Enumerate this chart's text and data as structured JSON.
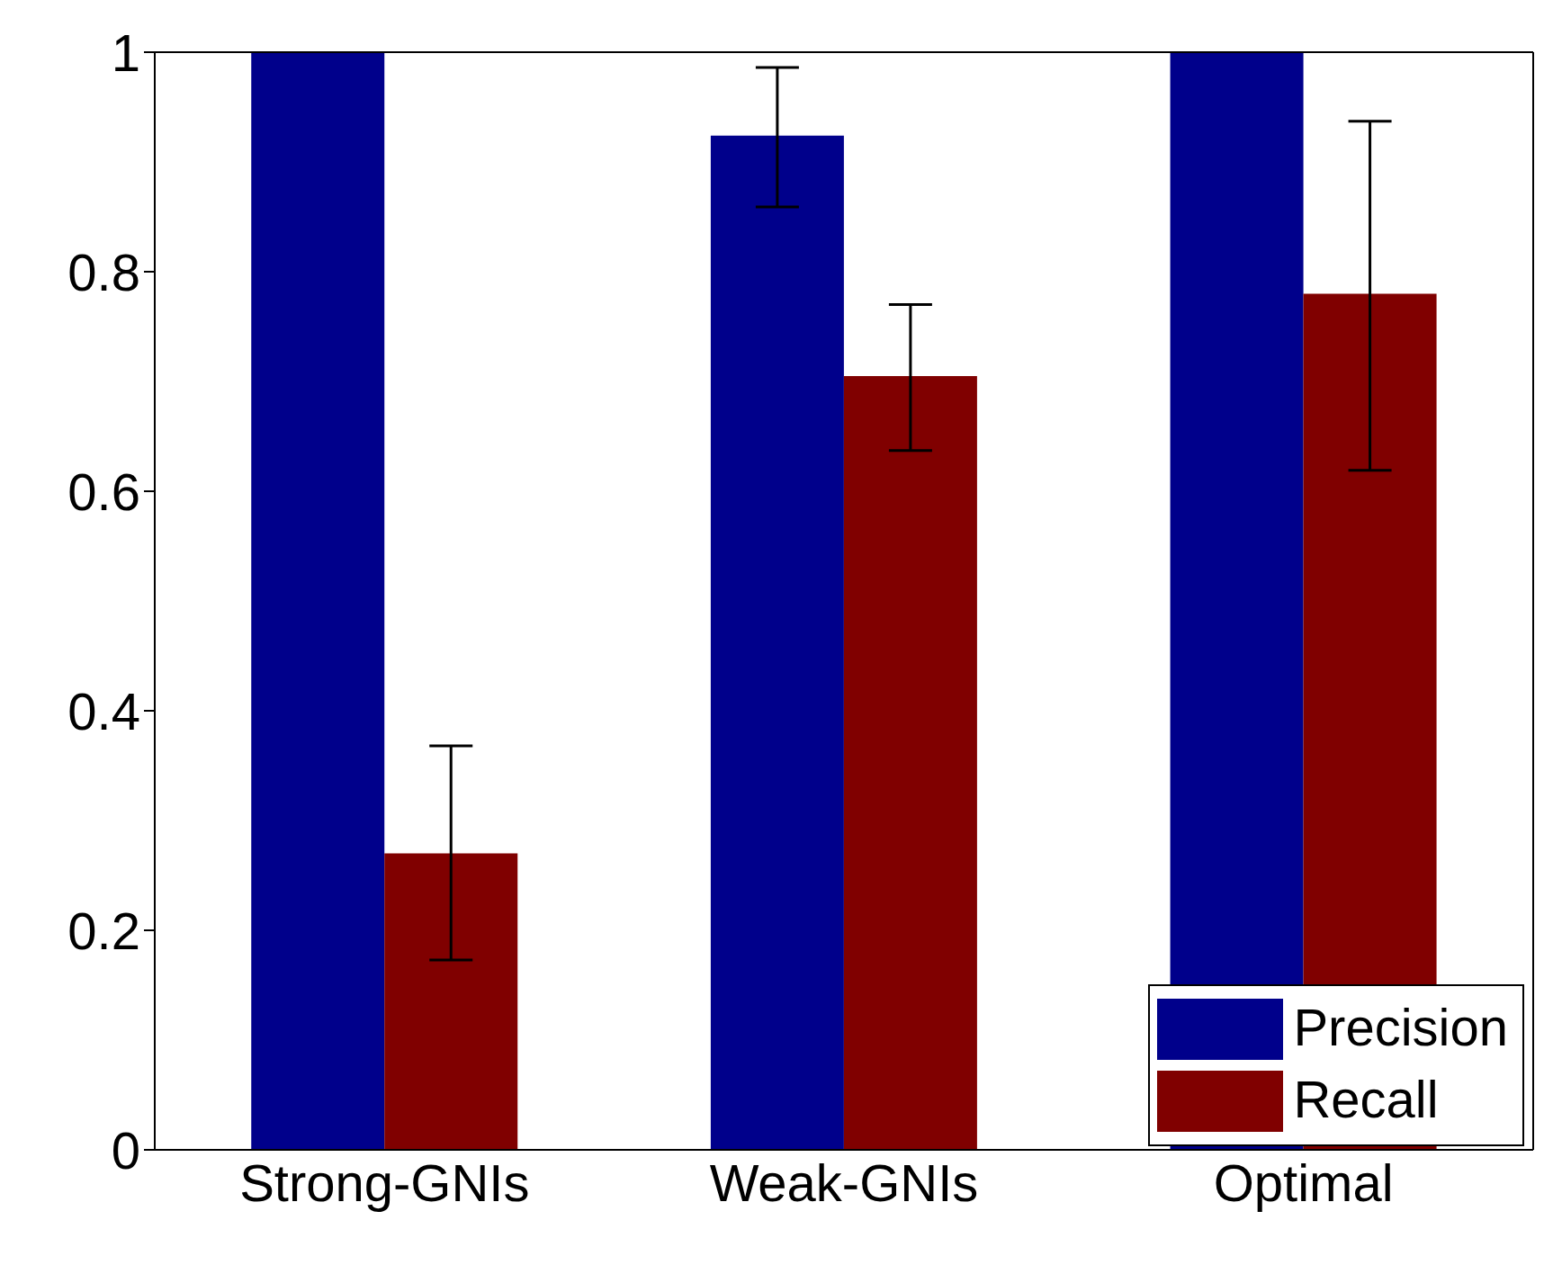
{
  "chart_data": {
    "type": "bar",
    "categories": [
      "Strong-GNIs",
      "Weak-GNIs",
      "Optimal"
    ],
    "series": [
      {
        "name": "Precision",
        "color": "#00008b",
        "values": [
          1,
          0.924,
          1
        ],
        "errors": [
          null,
          [
            0.859,
            0.986
          ],
          null
        ]
      },
      {
        "name": "Recall",
        "color": "#800000",
        "values": [
          0.27,
          0.705,
          0.78
        ],
        "errors": [
          [
            0.173,
            0.368
          ],
          [
            0.637,
            0.77
          ],
          [
            0.619,
            0.937
          ]
        ]
      }
    ],
    "ylim": [
      0,
      1
    ],
    "yticks": [
      0,
      0.2,
      0.4,
      0.6,
      0.8,
      1
    ],
    "legend": "bottom right"
  }
}
